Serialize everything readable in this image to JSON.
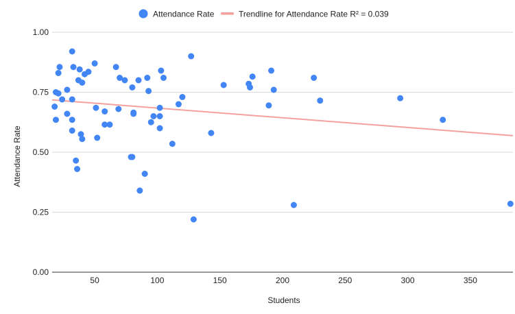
{
  "colors": {
    "points": "#4285f4",
    "trendline": "#f4a09c",
    "grid": "#d9d9d9",
    "axis": "#333333",
    "text": "#222222"
  },
  "chart_data": {
    "type": "scatter",
    "title": "",
    "xlabel": "Students",
    "ylabel": "Attendance Rate",
    "xlim": [
      16,
      384
    ],
    "ylim": [
      0,
      1
    ],
    "x_ticks": [
      50,
      100,
      150,
      200,
      250,
      300,
      350
    ],
    "y_ticks": [
      0,
      0.25,
      0.5,
      0.75,
      1.0
    ],
    "x_tick_labels": [
      "50",
      "100",
      "150",
      "200",
      "250",
      "300",
      "350"
    ],
    "y_tick_labels": [
      "0.00",
      "0.25",
      "0.50",
      "0.75",
      "1.00"
    ],
    "grid": "horizontal",
    "legend_position": "top",
    "legend": {
      "series_label": "Attendance Rate",
      "trend_label": "Trendline for Attendance Rate R² = 0.039"
    },
    "trendline": {
      "x": [
        16,
        384
      ],
      "y": [
        0.718,
        0.569
      ]
    },
    "series": [
      {
        "name": "Attendance Rate",
        "points": [
          [
            18,
            0.69
          ],
          [
            19,
            0.635
          ],
          [
            19,
            0.75
          ],
          [
            21,
            0.745
          ],
          [
            21,
            0.83
          ],
          [
            22,
            0.855
          ],
          [
            24,
            0.72
          ],
          [
            28,
            0.76
          ],
          [
            28,
            0.66
          ],
          [
            32,
            0.92
          ],
          [
            32,
            0.59
          ],
          [
            32,
            0.635
          ],
          [
            32,
            0.72
          ],
          [
            33,
            0.855
          ],
          [
            35,
            0.465
          ],
          [
            36,
            0.43
          ],
          [
            37,
            0.8
          ],
          [
            38,
            0.845
          ],
          [
            39,
            0.575
          ],
          [
            40,
            0.555
          ],
          [
            40,
            0.79
          ],
          [
            42,
            0.825
          ],
          [
            45,
            0.835
          ],
          [
            50,
            0.87
          ],
          [
            51,
            0.685
          ],
          [
            52,
            0.56
          ],
          [
            58,
            0.67
          ],
          [
            58,
            0.615
          ],
          [
            62,
            0.615
          ],
          [
            67,
            0.855
          ],
          [
            69,
            0.68
          ],
          [
            70,
            0.81
          ],
          [
            74,
            0.8
          ],
          [
            79,
            0.48
          ],
          [
            80,
            0.48
          ],
          [
            80,
            0.77
          ],
          [
            81,
            0.665
          ],
          [
            81,
            0.66
          ],
          [
            85,
            0.8
          ],
          [
            86,
            0.34
          ],
          [
            90,
            0.41
          ],
          [
            92,
            0.81
          ],
          [
            93,
            0.755
          ],
          [
            95,
            0.625
          ],
          [
            97,
            0.65
          ],
          [
            102,
            0.65
          ],
          [
            102,
            0.685
          ],
          [
            102,
            0.6
          ],
          [
            103,
            0.84
          ],
          [
            105,
            0.81
          ],
          [
            112,
            0.535
          ],
          [
            117,
            0.7
          ],
          [
            120,
            0.73
          ],
          [
            127,
            0.9
          ],
          [
            129,
            0.22
          ],
          [
            143,
            0.58
          ],
          [
            153,
            0.78
          ],
          [
            173,
            0.785
          ],
          [
            174,
            0.77
          ],
          [
            176,
            0.815
          ],
          [
            189,
            0.695
          ],
          [
            191,
            0.84
          ],
          [
            193,
            0.76
          ],
          [
            209,
            0.28
          ],
          [
            225,
            0.81
          ],
          [
            230,
            0.715
          ],
          [
            294,
            0.725
          ],
          [
            328,
            0.635
          ],
          [
            382,
            0.285
          ]
        ]
      }
    ]
  }
}
